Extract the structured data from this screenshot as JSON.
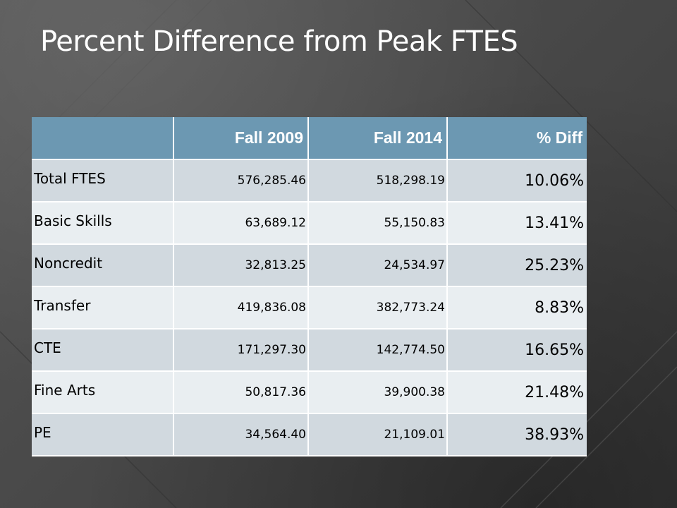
{
  "slide": {
    "title": "Percent Difference from Peak FTES"
  },
  "table": {
    "headers": [
      "",
      "Fall 2009",
      "Fall 2014",
      "% Diff"
    ],
    "rows": [
      {
        "label": "Total FTES",
        "fall_2009": "576,285.46",
        "fall_2014": "518,298.19",
        "pct_diff": "10.06%"
      },
      {
        "label": "Basic Skills",
        "fall_2009": "63,689.12",
        "fall_2014": "55,150.83",
        "pct_diff": "13.41%"
      },
      {
        "label": "Noncredit",
        "fall_2009": "32,813.25",
        "fall_2014": "24,534.97",
        "pct_diff": "25.23%"
      },
      {
        "label": "Transfer",
        "fall_2009": "419,836.08",
        "fall_2014": "382,773.24",
        "pct_diff": "8.83%"
      },
      {
        "label": "CTE",
        "fall_2009": "171,297.30",
        "fall_2014": "142,774.50",
        "pct_diff": "16.65%"
      },
      {
        "label": "Fine Arts",
        "fall_2009": "50,817.36",
        "fall_2014": "39,900.38",
        "pct_diff": "21.48%"
      },
      {
        "label": "PE",
        "fall_2009": "34,564.40",
        "fall_2014": "21,109.01",
        "pct_diff": "38.93%"
      }
    ]
  },
  "colors": {
    "background": "#454545",
    "header_fill": "#6c98b2",
    "row_odd": "#d1d9df",
    "row_even": "#e9eef1",
    "text_light": "#ffffff",
    "text_dark": "#000000"
  }
}
